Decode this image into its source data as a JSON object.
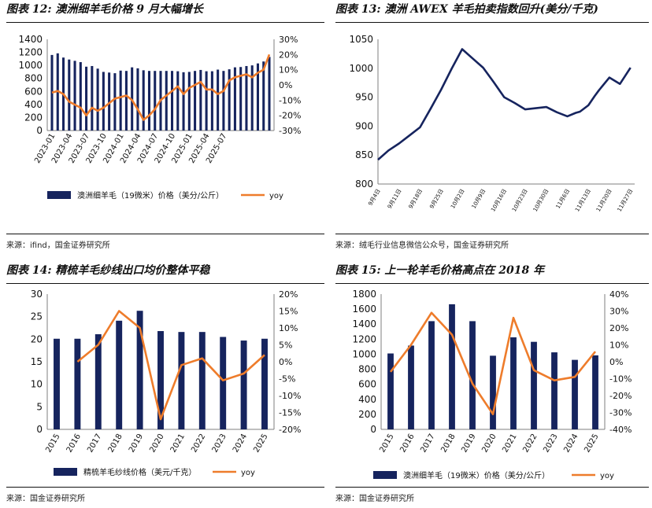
{
  "colors": {
    "bar": "#16245E",
    "line": "#EE7C2B",
    "axis": "#7f7f7f"
  },
  "chart_data": [
    {
      "id": "c12",
      "type": "bar+line",
      "title": "图表 12: 澳洲细羊毛价格 9 月大幅增长",
      "source": "来源：ifind，国金证券研究所",
      "xlabels": [
        "2023-01",
        "2023-04",
        "2023-07",
        "2023-10",
        "2024-01",
        "2024-04",
        "2024-07",
        "2024-10",
        "2025-01",
        "2025-04",
        "2025-07"
      ],
      "left_axis": {
        "ticks": [
          "1400",
          "1200",
          "1000",
          "800",
          "600",
          "400",
          "200",
          "0"
        ],
        "min": 0,
        "max": 1400
      },
      "right_axis": {
        "ticks": [
          "30%",
          "20%",
          "10%",
          "0%",
          "-10%",
          "-20%",
          "-30%"
        ],
        "min": -30,
        "max": 30
      },
      "series": [
        {
          "name": "澳洲细羊毛（19微米）价格（美分/公斤）",
          "kind": "bar",
          "values": [
            1160,
            1185,
            1120,
            1090,
            1070,
            1050,
            980,
            990,
            950,
            900,
            890,
            880,
            920,
            915,
            970,
            955,
            925,
            915,
            915,
            915,
            915,
            915,
            910,
            895,
            900,
            915,
            930,
            910,
            910,
            935,
            915,
            940,
            970,
            975,
            990,
            1000,
            1030,
            1060,
            1130
          ]
        },
        {
          "name": "yoy",
          "kind": "line",
          "values": [
            -5,
            -4,
            -6,
            -11,
            -13,
            -15,
            -20,
            -15,
            -17,
            -15,
            -12,
            -9,
            -8,
            -7,
            -10,
            -16,
            -23,
            -20,
            -16,
            -10,
            -7,
            -4,
            -1,
            -6,
            -2,
            0,
            2,
            -3,
            -3,
            -6,
            -4,
            3,
            5,
            6,
            7,
            5,
            8,
            10,
            20
          ]
        }
      ],
      "legend": [
        "澳洲细羊毛（19微米）价格（美分/公斤）",
        "yoy"
      ]
    },
    {
      "id": "c13",
      "type": "line",
      "title": "图表 13: 澳洲 AWEX 羊毛拍卖指数回升(美分/千克)",
      "source": "来源：绒毛行业信息微信公众号，国金证券研究所",
      "xlabels": [
        "9月4日",
        "9月11日",
        "9月18日",
        "9月25日",
        "10月2日",
        "10月9日",
        "10月16日",
        "10月23日",
        "10月30日",
        "11月6日",
        "11月13日",
        "11月20日",
        "11月27日"
      ],
      "left_axis": {
        "ticks": [
          "1050",
          "1000",
          "950",
          "900",
          "850",
          "800"
        ],
        "min": 800,
        "max": 1050
      },
      "series": [
        {
          "name": "AWEX",
          "kind": "line",
          "x": [
            0,
            0.5,
            1,
            1.5,
            2,
            2.5,
            3,
            3.5,
            4,
            4.5,
            5,
            5.5,
            6,
            6.5,
            7,
            7.5,
            8,
            8.5,
            9,
            9.4,
            9.6,
            10,
            10.3,
            10.5,
            11,
            11.5,
            12
          ],
          "values": [
            842,
            858,
            870,
            884,
            898,
            930,
            963,
            999,
            1033,
            1017,
            1001,
            976,
            950,
            940,
            929,
            931,
            933,
            924,
            917,
            923,
            925,
            936,
            952,
            962,
            984,
            973,
            1001
          ]
        }
      ]
    },
    {
      "id": "c14",
      "type": "bar+line",
      "title": "图表 14: 精梳羊毛纱线出口均价整体平稳",
      "source": "来源：国金证券研究所",
      "xlabels": [
        "2015",
        "2016",
        "2017",
        "2018",
        "2019",
        "2020",
        "2021",
        "2022",
        "2023",
        "2024",
        "2025"
      ],
      "left_axis": {
        "ticks": [
          "30",
          "25",
          "20",
          "15",
          "10",
          "5",
          "0"
        ],
        "min": 0,
        "max": 30
      },
      "right_axis": {
        "ticks": [
          "20%",
          "15%",
          "10%",
          "5%",
          "0%",
          "-5%",
          "-10%",
          "-15%",
          "-20%"
        ],
        "min": -20,
        "max": 20
      },
      "series": [
        {
          "name": "精梳羊毛纱线价格（美元/千克）",
          "kind": "bar",
          "values": [
            20.1,
            20.1,
            21.1,
            24.1,
            26.3,
            21.8,
            21.6,
            21.6,
            20.5,
            19.7,
            20.1
          ]
        },
        {
          "name": "yoy",
          "kind": "line",
          "values": [
            null,
            0,
            5,
            15,
            10,
            -17,
            -1,
            1,
            -5.5,
            -3.5,
            2
          ]
        }
      ],
      "legend": [
        "精梳羊毛纱线价格（美元/千克）",
        "yoy"
      ]
    },
    {
      "id": "c15",
      "type": "bar+line",
      "title": "图表 15: 上一轮羊毛价格高点在 2018 年",
      "source": "来源：国金证券研究所",
      "xlabels": [
        "2015",
        "2016",
        "2017",
        "2018",
        "2019",
        "2020",
        "2021",
        "2022",
        "2023",
        "2024",
        "2025"
      ],
      "left_axis": {
        "ticks": [
          "1800",
          "1600",
          "1400",
          "1200",
          "1000",
          "800",
          "600",
          "400",
          "200",
          "0"
        ],
        "min": 0,
        "max": 1800
      },
      "right_axis": {
        "ticks": [
          "40%",
          "30%",
          "20%",
          "10%",
          "0%",
          "-10%",
          "-20%",
          "-30%",
          "-40%"
        ],
        "min": -40,
        "max": 40
      },
      "series": [
        {
          "name": "澳洲细羊毛（19微米）价格（美分/公斤）",
          "kind": "bar",
          "values": [
            1010,
            1115,
            1440,
            1665,
            1440,
            980,
            1225,
            1165,
            1025,
            925,
            985
          ]
        },
        {
          "name": "yoy",
          "kind": "line",
          "values": [
            -6,
            10,
            29,
            16,
            -13,
            -31,
            26,
            -5,
            -11,
            -9,
            6
          ]
        }
      ],
      "legend": [
        "澳洲细羊毛（19微米）价格（美分/公斤）",
        "yoy"
      ]
    }
  ]
}
